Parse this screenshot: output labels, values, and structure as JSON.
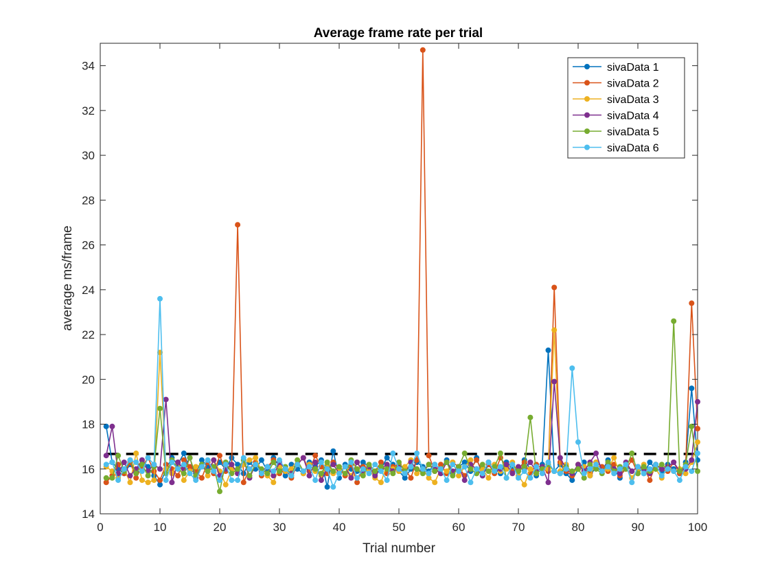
{
  "chart_data": {
    "type": "line",
    "title": "Average frame rate per trial",
    "xlabel": "Trial number",
    "ylabel": "average ms/frame",
    "xlim": [
      0,
      100
    ],
    "ylim": [
      14,
      35
    ],
    "xticks": [
      0,
      10,
      20,
      30,
      40,
      50,
      60,
      70,
      80,
      90,
      100
    ],
    "yticks": [
      14,
      16,
      18,
      20,
      22,
      24,
      26,
      28,
      30,
      32,
      34
    ],
    "grid": false,
    "legend_position": "top-right",
    "reference_line": {
      "y": 16.67,
      "style": "dashed",
      "color": "#000000"
    },
    "series": [
      {
        "name": "sivaData 1",
        "color": "#0072BD",
        "x": [
          1,
          2,
          3,
          4,
          5,
          6,
          7,
          8,
          9,
          10,
          11,
          12,
          13,
          14,
          15,
          16,
          17,
          18,
          19,
          20,
          21,
          22,
          23,
          24,
          25,
          26,
          27,
          28,
          29,
          30,
          31,
          32,
          33,
          34,
          35,
          36,
          37,
          38,
          39,
          40,
          41,
          42,
          43,
          44,
          45,
          46,
          47,
          48,
          49,
          50,
          51,
          52,
          53,
          54,
          55,
          56,
          57,
          58,
          59,
          60,
          61,
          62,
          63,
          64,
          65,
          66,
          67,
          68,
          69,
          70,
          71,
          72,
          73,
          74,
          75,
          76,
          77,
          78,
          79,
          80,
          81,
          82,
          83,
          84,
          85,
          86,
          87,
          88,
          89,
          90,
          91,
          92,
          93,
          94,
          95,
          96,
          97,
          98,
          99,
          100
        ],
        "y": [
          17.9,
          16.3,
          16.0,
          15.8,
          16.2,
          15.9,
          16.4,
          16.1,
          15.7,
          15.3,
          16.0,
          16.5,
          16.2,
          16.7,
          16.0,
          15.8,
          16.4,
          16.1,
          15.9,
          16.3,
          16.0,
          16.5,
          16.2,
          15.8,
          16.3,
          16.0,
          16.4,
          15.9,
          16.5,
          16.1,
          15.7,
          16.2,
          16.0,
          15.8,
          16.3,
          16.1,
          16.4,
          15.2,
          16.8,
          15.6,
          16.2,
          16.0,
          15.9,
          16.3,
          16.1,
          15.8,
          16.0,
          16.5,
          16.2,
          15.9,
          15.6,
          16.0,
          16.3,
          16.1,
          15.9,
          16.2,
          16.0,
          16.4,
          15.8,
          16.1,
          16.3,
          15.9,
          16.5,
          15.7,
          16.2,
          16.0,
          15.8,
          16.3,
          16.1,
          15.9,
          16.4,
          16.0,
          15.7,
          16.2,
          21.3,
          15.9,
          16.2,
          15.8,
          15.5,
          16.0,
          16.3,
          15.7,
          16.1,
          15.9,
          16.4,
          16.0,
          15.6,
          16.2,
          15.9,
          16.1,
          15.8,
          16.3,
          16.0,
          15.9,
          16.2,
          16.0,
          15.8,
          16.3,
          19.6,
          16.4
        ]
      },
      {
        "name": "sivaData 2",
        "color": "#D95319",
        "x": [
          1,
          2,
          3,
          4,
          5,
          6,
          7,
          8,
          9,
          10,
          11,
          12,
          13,
          14,
          15,
          16,
          17,
          18,
          19,
          20,
          21,
          22,
          23,
          24,
          25,
          26,
          27,
          28,
          29,
          30,
          31,
          32,
          33,
          34,
          35,
          36,
          37,
          38,
          39,
          40,
          41,
          42,
          43,
          44,
          45,
          46,
          47,
          48,
          49,
          50,
          51,
          52,
          53,
          54,
          55,
          56,
          57,
          58,
          59,
          60,
          61,
          62,
          63,
          64,
          65,
          66,
          67,
          68,
          69,
          70,
          71,
          72,
          73,
          74,
          75,
          76,
          77,
          78,
          79,
          80,
          81,
          82,
          83,
          84,
          85,
          86,
          87,
          88,
          89,
          90,
          91,
          92,
          93,
          94,
          95,
          96,
          97,
          98,
          99,
          100
        ],
        "y": [
          15.4,
          15.7,
          16.2,
          15.8,
          16.3,
          15.6,
          16.1,
          16.5,
          15.9,
          15.5,
          16.2,
          16.0,
          15.7,
          16.4,
          16.1,
          15.9,
          15.6,
          16.3,
          15.8,
          16.6,
          15.9,
          16.2,
          26.9,
          15.4,
          16.0,
          16.3,
          15.7,
          16.1,
          16.4,
          15.8,
          16.0,
          15.6,
          16.2,
          16.5,
          15.9,
          16.6,
          16.1,
          15.8,
          16.3,
          16.0,
          15.7,
          16.2,
          15.4,
          16.1,
          16.0,
          15.9,
          16.3,
          15.8,
          16.1,
          16.2,
          16.0,
          15.6,
          16.4,
          34.7,
          16.6,
          15.9,
          16.2,
          15.8,
          16.3,
          16.1,
          15.7,
          16.0,
          16.4,
          15.9,
          16.2,
          15.8,
          16.5,
          16.1,
          15.9,
          16.0,
          16.3,
          15.8,
          16.2,
          16.0,
          15.9,
          24.1,
          16.3,
          15.9,
          15.7,
          16.2,
          16.0,
          15.8,
          16.3,
          16.1,
          15.9,
          16.2,
          15.7,
          16.0,
          16.4,
          15.8,
          16.1,
          15.5,
          16.2,
          16.0,
          15.9,
          16.3,
          15.8,
          16.1,
          23.4,
          17.8
        ]
      },
      {
        "name": "sivaData 3",
        "color": "#EDB120",
        "x": [
          1,
          2,
          3,
          4,
          5,
          6,
          7,
          8,
          9,
          10,
          11,
          12,
          13,
          14,
          15,
          16,
          17,
          18,
          19,
          20,
          21,
          22,
          23,
          24,
          25,
          26,
          27,
          28,
          29,
          30,
          31,
          32,
          33,
          34,
          35,
          36,
          37,
          38,
          39,
          40,
          41,
          42,
          43,
          44,
          45,
          46,
          47,
          48,
          49,
          50,
          51,
          52,
          53,
          54,
          55,
          56,
          57,
          58,
          59,
          60,
          61,
          62,
          63,
          64,
          65,
          66,
          67,
          68,
          69,
          70,
          71,
          72,
          73,
          74,
          75,
          76,
          77,
          78,
          79,
          80,
          81,
          82,
          83,
          84,
          85,
          86,
          87,
          88,
          89,
          90,
          91,
          92,
          93,
          94,
          95,
          96,
          97,
          98,
          99,
          100
        ],
        "y": [
          16.1,
          15.9,
          15.6,
          16.0,
          15.4,
          16.7,
          15.5,
          15.4,
          15.5,
          21.2,
          16.0,
          15.8,
          16.3,
          15.5,
          15.9,
          16.1,
          16.2,
          15.7,
          16.4,
          15.9,
          15.3,
          16.0,
          15.8,
          16.2,
          16.4,
          16.5,
          15.9,
          15.7,
          15.4,
          16.1,
          15.9,
          16.0,
          16.4,
          15.8,
          16.2,
          15.9,
          15.7,
          16.2,
          15.8,
          15.9,
          16.1,
          15.7,
          16.3,
          15.8,
          16.0,
          15.6,
          15.4,
          16.2,
          16.0,
          15.9,
          16.1,
          16.4,
          15.8,
          16.0,
          15.6,
          15.4,
          16.0,
          15.9,
          16.3,
          15.7,
          16.1,
          16.4,
          15.8,
          16.0,
          15.6,
          16.2,
          15.9,
          16.0,
          16.3,
          15.7,
          15.3,
          16.0,
          15.8,
          16.1,
          16.0,
          22.2,
          15.9,
          16.2,
          15.8,
          16.0,
          16.1,
          15.7,
          16.3,
          15.9,
          16.0,
          16.5,
          15.8,
          16.1,
          15.6,
          16.0,
          16.2,
          15.8,
          16.0,
          15.6,
          16.1,
          15.9,
          16.0,
          15.8,
          16.3,
          17.2
        ]
      },
      {
        "name": "sivaData 4",
        "color": "#7E2F8E",
        "x": [
          1,
          2,
          3,
          4,
          5,
          6,
          7,
          8,
          9,
          10,
          11,
          12,
          13,
          14,
          15,
          16,
          17,
          18,
          19,
          20,
          21,
          22,
          23,
          24,
          25,
          26,
          27,
          28,
          29,
          30,
          31,
          32,
          33,
          34,
          35,
          36,
          37,
          38,
          39,
          40,
          41,
          42,
          43,
          44,
          45,
          46,
          47,
          48,
          49,
          50,
          51,
          52,
          53,
          54,
          55,
          56,
          57,
          58,
          59,
          60,
          61,
          62,
          63,
          64,
          65,
          66,
          67,
          68,
          69,
          70,
          71,
          72,
          73,
          74,
          75,
          76,
          77,
          78,
          79,
          80,
          81,
          82,
          83,
          84,
          85,
          86,
          87,
          88,
          89,
          90,
          91,
          92,
          93,
          94,
          95,
          96,
          97,
          98,
          99,
          100
        ],
        "y": [
          16.6,
          17.9,
          15.8,
          16.3,
          15.7,
          16.0,
          16.4,
          15.9,
          16.2,
          16.0,
          19.1,
          15.4,
          16.3,
          16.0,
          16.5,
          15.6,
          16.1,
          15.9,
          16.4,
          15.7,
          16.0,
          16.2,
          15.8,
          16.4,
          15.6,
          16.2,
          15.9,
          16.1,
          15.7,
          16.3,
          16.0,
          15.8,
          16.2,
          16.5,
          15.7,
          16.3,
          15.5,
          16.0,
          16.2,
          15.8,
          16.1,
          15.6,
          16.3,
          15.9,
          16.1,
          15.7,
          16.0,
          16.2,
          15.9,
          16.1,
          15.8,
          16.3,
          16.0,
          15.9,
          16.2,
          16.0,
          15.8,
          16.3,
          15.9,
          16.1,
          15.5,
          16.2,
          16.0,
          15.7,
          16.3,
          15.9,
          16.0,
          16.2,
          15.8,
          16.1,
          16.0,
          16.3,
          15.9,
          16.1,
          15.4,
          19.9,
          16.5,
          16.0,
          15.8,
          16.2,
          15.9,
          16.3,
          16.7,
          15.9,
          16.2,
          16.0,
          15.8,
          16.3,
          15.9,
          16.1,
          16.0,
          15.8,
          16.2,
          16.0,
          16.1,
          16.3,
          15.9,
          16.0,
          16.4,
          19.0
        ]
      },
      {
        "name": "sivaData 5",
        "color": "#77AC30",
        "x": [
          1,
          2,
          3,
          4,
          5,
          6,
          7,
          8,
          9,
          10,
          11,
          12,
          13,
          14,
          15,
          16,
          17,
          18,
          19,
          20,
          21,
          22,
          23,
          24,
          25,
          26,
          27,
          28,
          29,
          30,
          31,
          32,
          33,
          34,
          35,
          36,
          37,
          38,
          39,
          40,
          41,
          42,
          43,
          44,
          45,
          46,
          47,
          48,
          49,
          50,
          51,
          52,
          53,
          54,
          55,
          56,
          57,
          58,
          59,
          60,
          61,
          62,
          63,
          64,
          65,
          66,
          67,
          68,
          69,
          70,
          71,
          72,
          73,
          74,
          75,
          76,
          77,
          78,
          79,
          80,
          81,
          82,
          83,
          84,
          85,
          86,
          87,
          88,
          89,
          90,
          91,
          92,
          93,
          94,
          95,
          96,
          97,
          98,
          99,
          100
        ],
        "y": [
          15.6,
          15.6,
          16.6,
          15.9,
          16.4,
          15.8,
          16.2,
          15.7,
          16.1,
          18.7,
          15.8,
          16.4,
          16.0,
          15.8,
          16.5,
          15.7,
          16.2,
          15.9,
          16.1,
          15.0,
          16.3,
          15.8,
          16.0,
          16.4,
          15.7,
          16.2,
          16.0,
          15.8,
          16.3,
          15.9,
          16.1,
          15.7,
          16.4,
          15.9,
          16.1,
          16.0,
          15.8,
          16.3,
          15.9,
          16.1,
          15.8,
          16.4,
          16.0,
          15.7,
          16.2,
          15.9,
          16.1,
          16.0,
          15.8,
          16.3,
          15.9,
          16.1,
          16.0,
          15.8,
          16.2,
          15.9,
          16.0,
          16.3,
          15.7,
          16.1,
          16.7,
          16.0,
          15.8,
          16.2,
          15.9,
          16.1,
          16.7,
          15.6,
          16.2,
          15.9,
          16.1,
          18.3,
          15.8,
          16.0,
          16.2,
          15.9,
          15.8,
          16.1,
          15.9,
          16.0,
          15.6,
          16.2,
          16.0,
          15.8,
          16.3,
          15.9,
          16.1,
          16.0,
          16.7,
          15.8,
          16.1,
          15.9,
          16.0,
          16.2,
          16.0,
          22.6,
          15.9,
          16.2,
          17.9,
          15.9
        ]
      },
      {
        "name": "sivaData 6",
        "color": "#4DBEEE",
        "x": [
          1,
          2,
          3,
          4,
          5,
          6,
          7,
          8,
          9,
          10,
          11,
          12,
          13,
          14,
          15,
          16,
          17,
          18,
          19,
          20,
          21,
          22,
          23,
          24,
          25,
          26,
          27,
          28,
          29,
          30,
          31,
          32,
          33,
          34,
          35,
          36,
          37,
          38,
          39,
          40,
          41,
          42,
          43,
          44,
          45,
          46,
          47,
          48,
          49,
          50,
          51,
          52,
          53,
          54,
          55,
          56,
          57,
          58,
          59,
          60,
          61,
          62,
          63,
          64,
          65,
          66,
          67,
          68,
          69,
          70,
          71,
          72,
          73,
          74,
          75,
          76,
          77,
          78,
          79,
          80,
          81,
          82,
          83,
          84,
          85,
          86,
          87,
          88,
          89,
          90,
          91,
          92,
          93,
          94,
          95,
          96,
          97,
          98,
          99,
          100
        ],
        "y": [
          16.2,
          16.3,
          15.5,
          16.0,
          16.4,
          16.3,
          15.9,
          16.5,
          16.2,
          23.6,
          15.5,
          16.3,
          16.0,
          16.2,
          15.8,
          15.5,
          16.1,
          16.4,
          15.9,
          15.5,
          16.2,
          15.5,
          15.5,
          16.5,
          16.0,
          16.2,
          15.8,
          16.1,
          15.9,
          16.4,
          16.0,
          15.7,
          16.2,
          15.9,
          16.1,
          15.5,
          16.3,
          16.0,
          15.2,
          15.8,
          16.1,
          16.3,
          15.6,
          16.0,
          15.8,
          16.2,
          15.9,
          15.5,
          16.7,
          16.0,
          15.8,
          16.1,
          16.7,
          16.0,
          15.8,
          16.2,
          16.0,
          15.5,
          16.2,
          15.9,
          16.1,
          15.4,
          16.0,
          15.8,
          16.3,
          15.9,
          16.1,
          15.6,
          16.2,
          15.6,
          15.9,
          15.6,
          16.1,
          15.8,
          16.3,
          15.9,
          15.8,
          16.0,
          20.5,
          17.2,
          15.8,
          16.0,
          16.2,
          15.9,
          16.1,
          15.8,
          16.0,
          16.2,
          15.4,
          16.1,
          15.8,
          16.0,
          16.2,
          15.7,
          16.0,
          15.9,
          15.5,
          16.1,
          15.9,
          16.7
        ]
      }
    ]
  }
}
